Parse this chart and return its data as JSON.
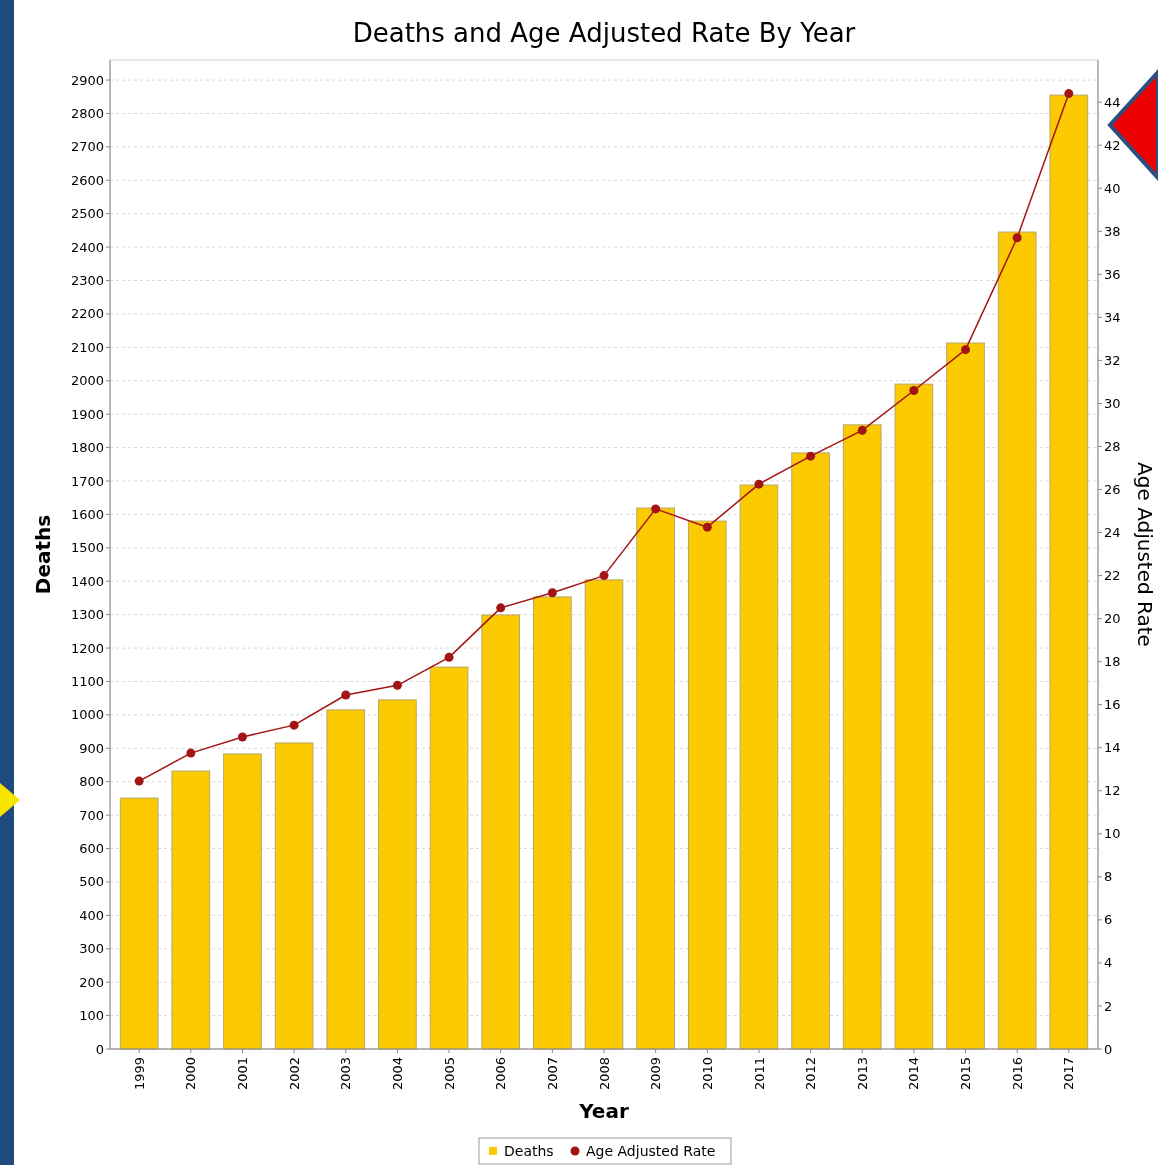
{
  "chart_data": {
    "type": "bar",
    "title": "Deaths and Age Adjusted Rate By Year",
    "xlabel": "Year",
    "ylabel": "Deaths",
    "y2label": "Age Adjusted Rate",
    "categories": [
      "1999",
      "2000",
      "2001",
      "2002",
      "2003",
      "2004",
      "2005",
      "2006",
      "2007",
      "2008",
      "2009",
      "2010",
      "2011",
      "2012",
      "2013",
      "2014",
      "2015",
      "2016",
      "2017"
    ],
    "series": [
      {
        "name": "Deaths",
        "color": "#fcca00",
        "values": [
          751,
          832,
          883,
          916,
          1015,
          1045,
          1143,
          1299,
          1353,
          1404,
          1619,
          1580,
          1688,
          1784,
          1868,
          1990,
          2113,
          2445,
          2855
        ]
      },
      {
        "name": "Age Adjusted Rate",
        "type": "line",
        "axis": "y2",
        "color": "#a31515",
        "marker": "circle",
        "values": [
          12.45,
          13.75,
          14.5,
          15.05,
          16.45,
          16.9,
          18.2,
          20.5,
          21.2,
          22.0,
          25.1,
          24.25,
          26.25,
          27.55,
          28.75,
          30.6,
          32.5,
          37.7,
          44.4
        ]
      }
    ],
    "ylim": [
      0,
      2960
    ],
    "yticks": [
      0,
      100,
      200,
      300,
      400,
      500,
      600,
      700,
      800,
      900,
      1000,
      1100,
      1200,
      1300,
      1400,
      1500,
      1600,
      1700,
      1800,
      1900,
      2000,
      2100,
      2200,
      2300,
      2400,
      2500,
      2600,
      2700,
      2800,
      2900
    ],
    "y2lim": [
      0,
      45.96
    ],
    "y2ticks": [
      0,
      2,
      4,
      6,
      8,
      10,
      12,
      14,
      16,
      18,
      20,
      22,
      24,
      26,
      28,
      30,
      32,
      34,
      36,
      38,
      40,
      42,
      44
    ],
    "grid": "y",
    "legend": "bottom"
  }
}
